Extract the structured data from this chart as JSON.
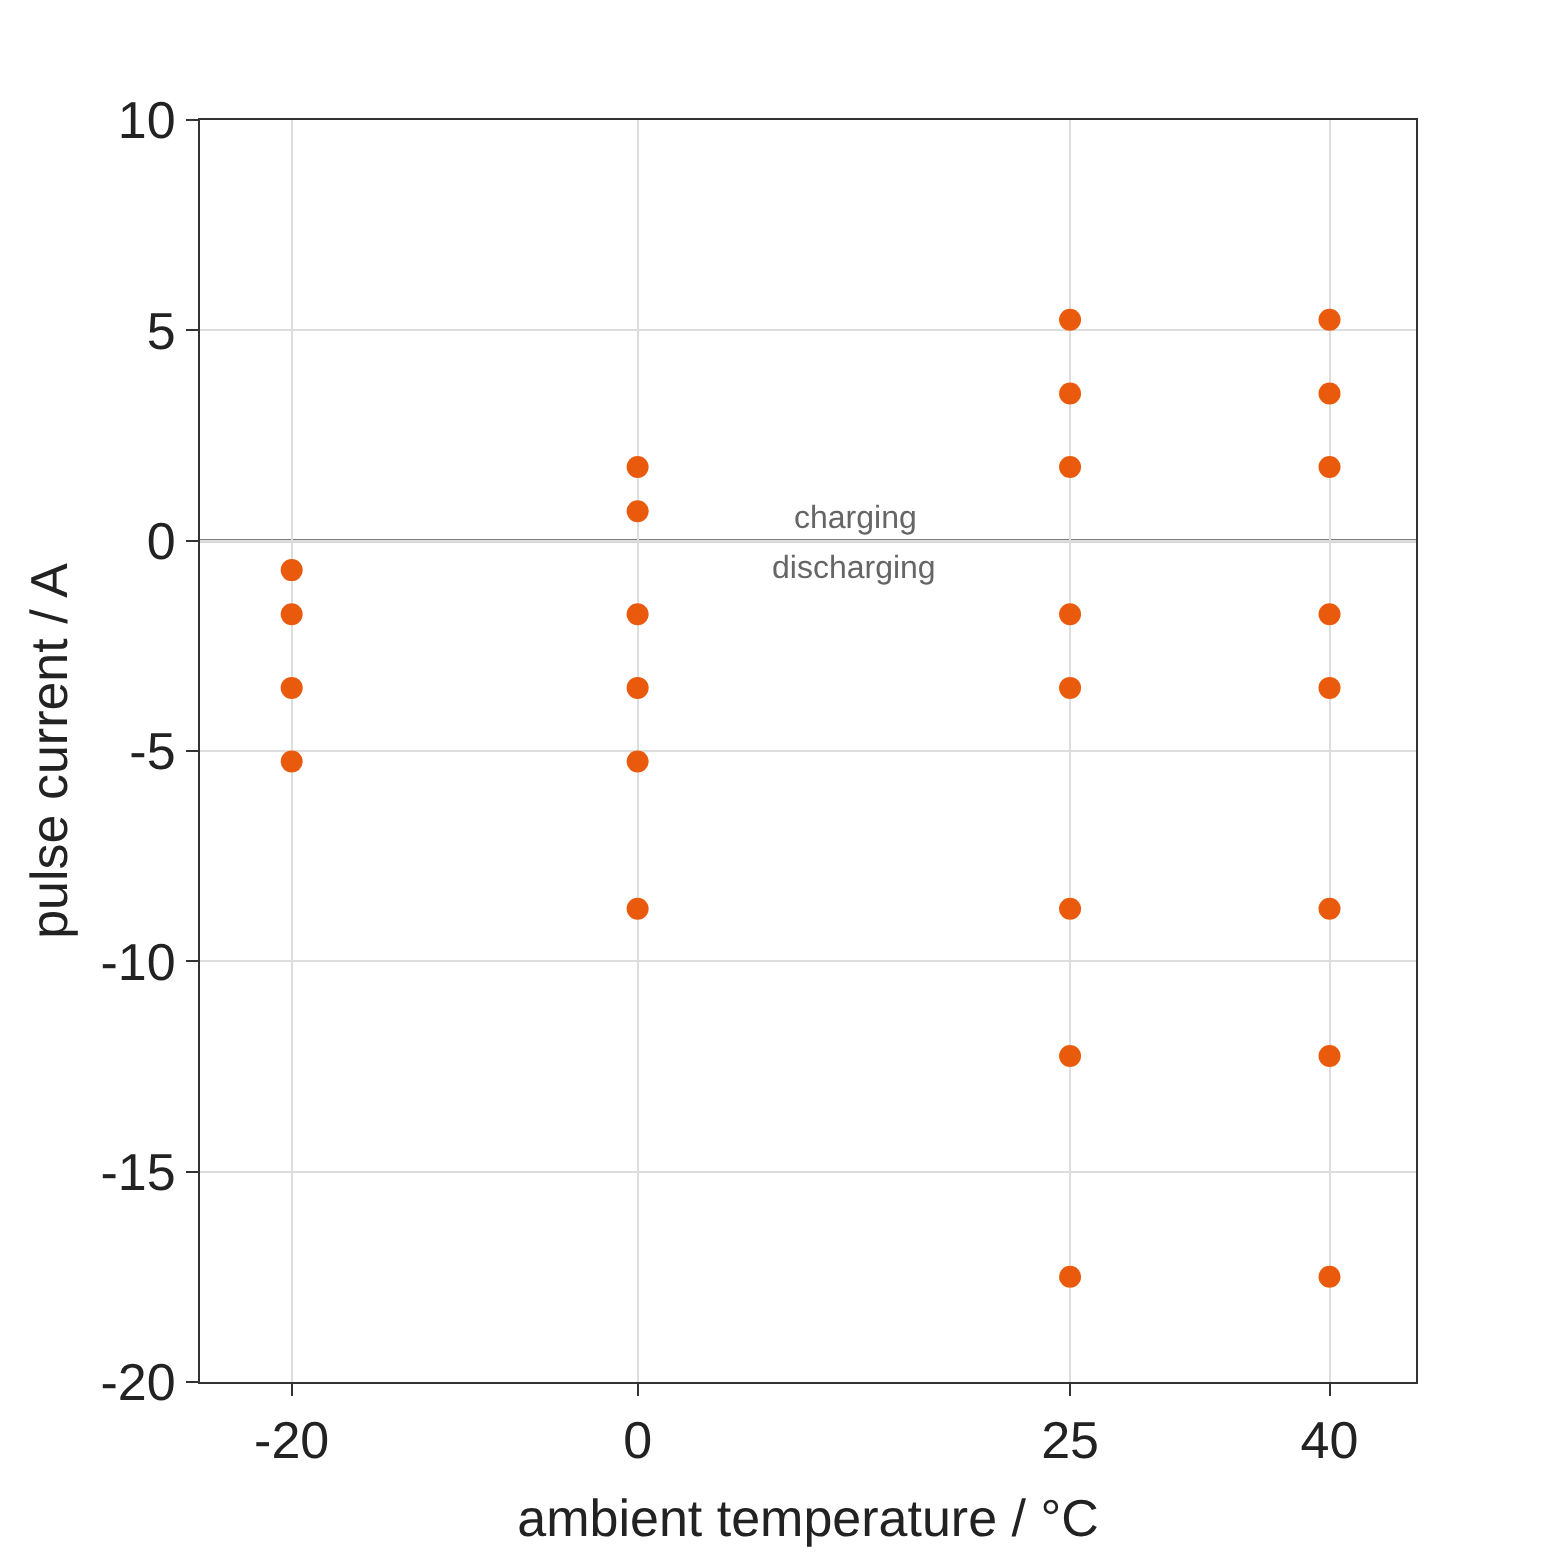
{
  "chart_data": {
    "type": "scatter",
    "xlabel": "ambient temperature / °C",
    "ylabel": "pulse current / A",
    "x": [
      -20,
      -20,
      -20,
      -20,
      0,
      0,
      0,
      0,
      0,
      0,
      25,
      25,
      25,
      25,
      25,
      25,
      25,
      25,
      40,
      40,
      40,
      40,
      40,
      40,
      40,
      40
    ],
    "series": [
      {
        "color": "#ea5a0c",
        "values": [
          -0.7,
          -1.75,
          -3.5,
          -5.25,
          1.75,
          0.7,
          -1.75,
          -3.5,
          -5.25,
          -8.75,
          5.25,
          3.5,
          1.75,
          -1.75,
          -3.5,
          -8.75,
          -12.25,
          -17.5,
          5.25,
          3.5,
          1.75,
          -1.75,
          -3.5,
          -8.75,
          -12.25,
          -17.5
        ]
      }
    ],
    "marker": "circle",
    "xlim": [
      -25.3,
      45
    ],
    "xticks": [
      -20,
      0,
      25,
      40
    ],
    "ylim": [
      -20,
      10
    ],
    "yticks": [
      -20,
      -15,
      -10,
      -5,
      0,
      5,
      10
    ],
    "grid": true,
    "ref_lines": [
      {
        "axis": "y",
        "value": 0,
        "color": "#555555"
      }
    ],
    "annotations": [
      "charging",
      "discharging"
    ]
  }
}
